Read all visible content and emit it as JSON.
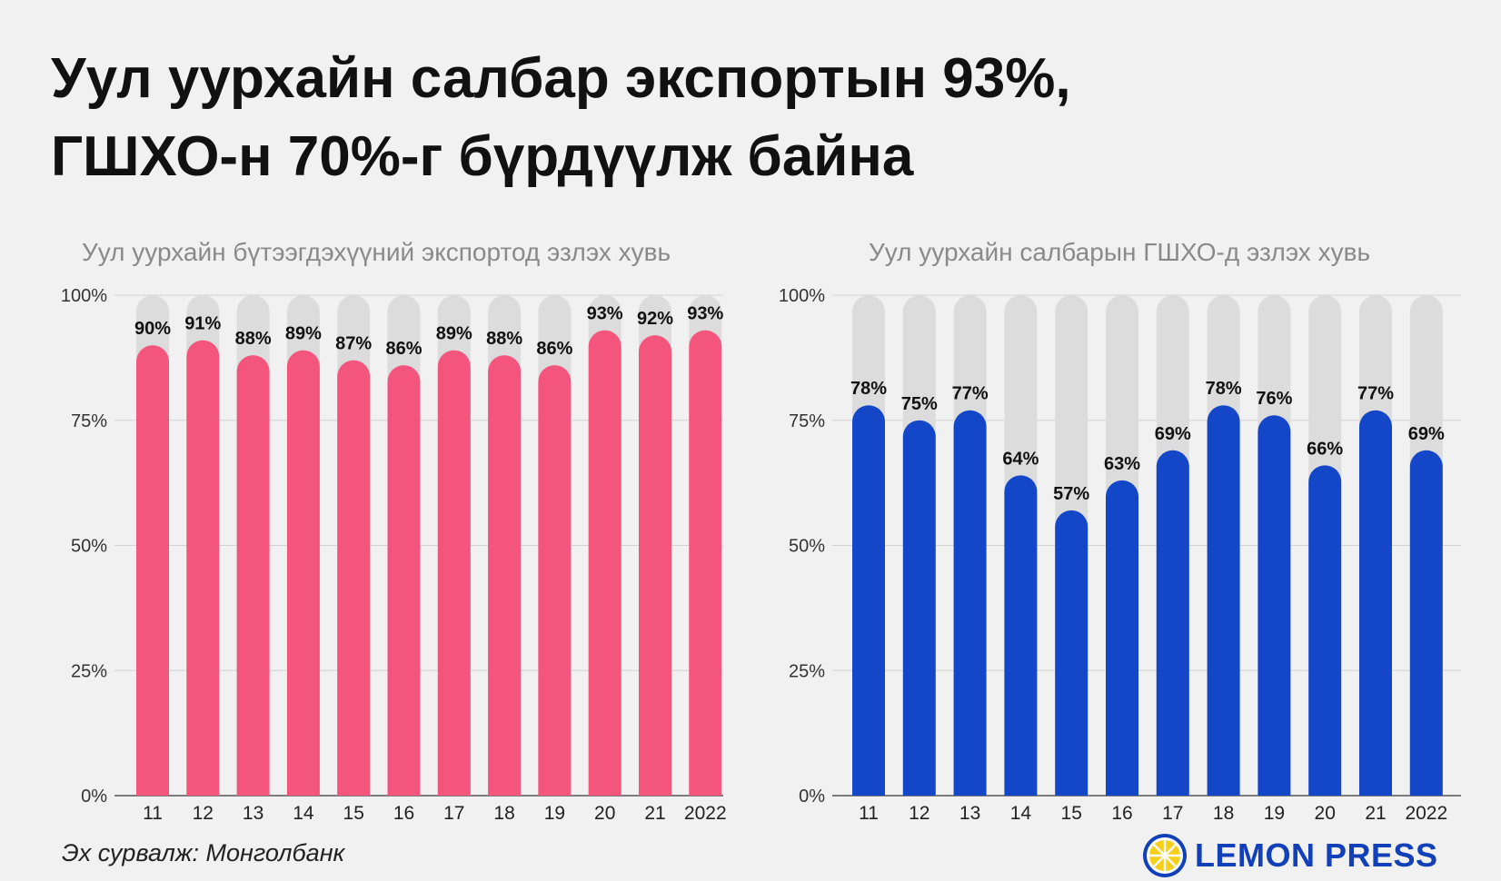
{
  "headline": {
    "line1": "Уул уурхайн салбар экспортын 93%,",
    "line2": "ГШХО-н 70%-г бүрдүүлж байна"
  },
  "source": "Эх сурвалж: Монголбанк",
  "brand": {
    "name": "LEMON PRESS",
    "logo_icon": "lemon-slice-icon"
  },
  "colors": {
    "background": "#f1f1f1",
    "bar_track": "#dcdcdc",
    "left_bar": "#f4557d",
    "right_bar": "#1446c8",
    "gridline": "#d2d2d2",
    "subtitle": "#8a8a8a",
    "brand": "#1240b8"
  },
  "chart_data": [
    {
      "type": "bar",
      "title": "Уул уурхайн бүтээгдэхүүний экспортод эзлэх хувь",
      "categories": [
        "11",
        "12",
        "13",
        "14",
        "15",
        "16",
        "17",
        "18",
        "19",
        "20",
        "21",
        "2022"
      ],
      "values": [
        90,
        91,
        88,
        89,
        87,
        86,
        89,
        88,
        86,
        93,
        92,
        93
      ],
      "data_labels": [
        "90%",
        "91%",
        "88%",
        "89%",
        "87%",
        "86%",
        "89%",
        "88%",
        "86%",
        "93%",
        "92%",
        "93%"
      ],
      "ylim": [
        0,
        100
      ],
      "yticks": [
        0,
        25,
        50,
        75,
        100
      ],
      "ytick_labels": [
        "0%",
        "25%",
        "50%",
        "75%",
        "100%"
      ],
      "grid": true,
      "background_track": 100,
      "color": "#f4557d"
    },
    {
      "type": "bar",
      "title": "Уул уурхайн салбарын ГШХО-д эзлэх хувь",
      "categories": [
        "11",
        "12",
        "13",
        "14",
        "15",
        "16",
        "17",
        "18",
        "19",
        "20",
        "21",
        "2022"
      ],
      "values": [
        78,
        75,
        77,
        64,
        57,
        63,
        69,
        78,
        76,
        66,
        77,
        69
      ],
      "data_labels": [
        "78%",
        "75%",
        "77%",
        "64%",
        "57%",
        "63%",
        "69%",
        "78%",
        "76%",
        "66%",
        "77%",
        "69%"
      ],
      "ylim": [
        0,
        100
      ],
      "yticks": [
        0,
        25,
        50,
        75,
        100
      ],
      "ytick_labels": [
        "0%",
        "25%",
        "50%",
        "75%",
        "100%"
      ],
      "grid": true,
      "background_track": 100,
      "color": "#1446c8"
    }
  ]
}
